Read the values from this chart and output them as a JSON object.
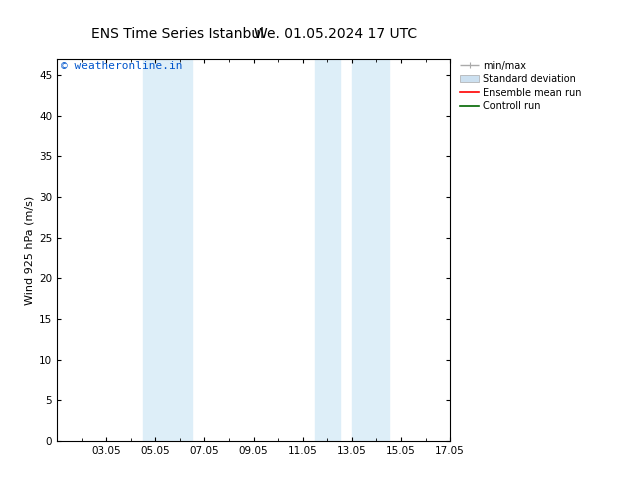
{
  "title1": "ENS Time Series Istanbul",
  "title2": "We. 01.05.2024 17 UTC",
  "ylabel": "Wind 925 hPa (m/s)",
  "ylim": [
    0,
    47
  ],
  "yticks": [
    0,
    5,
    10,
    15,
    20,
    25,
    30,
    35,
    40,
    45
  ],
  "xlim": [
    0,
    16
  ],
  "xtick_positions": [
    2,
    4,
    6,
    8,
    10,
    12,
    14,
    16
  ],
  "xtick_labels": [
    "03.05",
    "05.05",
    "07.05",
    "09.05",
    "11.05",
    "13.05",
    "15.05",
    "17.05"
  ],
  "shaded_bands": [
    {
      "x_start": 3.5,
      "x_end": 4.5,
      "color": "#ddeef8"
    },
    {
      "x_start": 4.5,
      "x_end": 5.5,
      "color": "#ddeef8"
    },
    {
      "x_start": 10.5,
      "x_end": 11.5,
      "color": "#ddeef8"
    },
    {
      "x_start": 12.0,
      "x_end": 13.5,
      "color": "#ddeef8"
    }
  ],
  "watermark_text": "© weatheronline.in",
  "watermark_color": "#0055cc",
  "watermark_fontsize": 8,
  "bg_color": "#ffffff",
  "plot_bg_color": "#ffffff",
  "tick_label_fontsize": 7.5,
  "axis_label_fontsize": 8,
  "title_fontsize": 10,
  "grid_color": "#cccccc",
  "spine_color": "#000000",
  "legend_fontsize": 7,
  "legend_minmax_color": "#aaaaaa",
  "legend_std_color": "#cce0f0",
  "legend_ens_color": "#ff0000",
  "legend_ctrl_color": "#006600"
}
